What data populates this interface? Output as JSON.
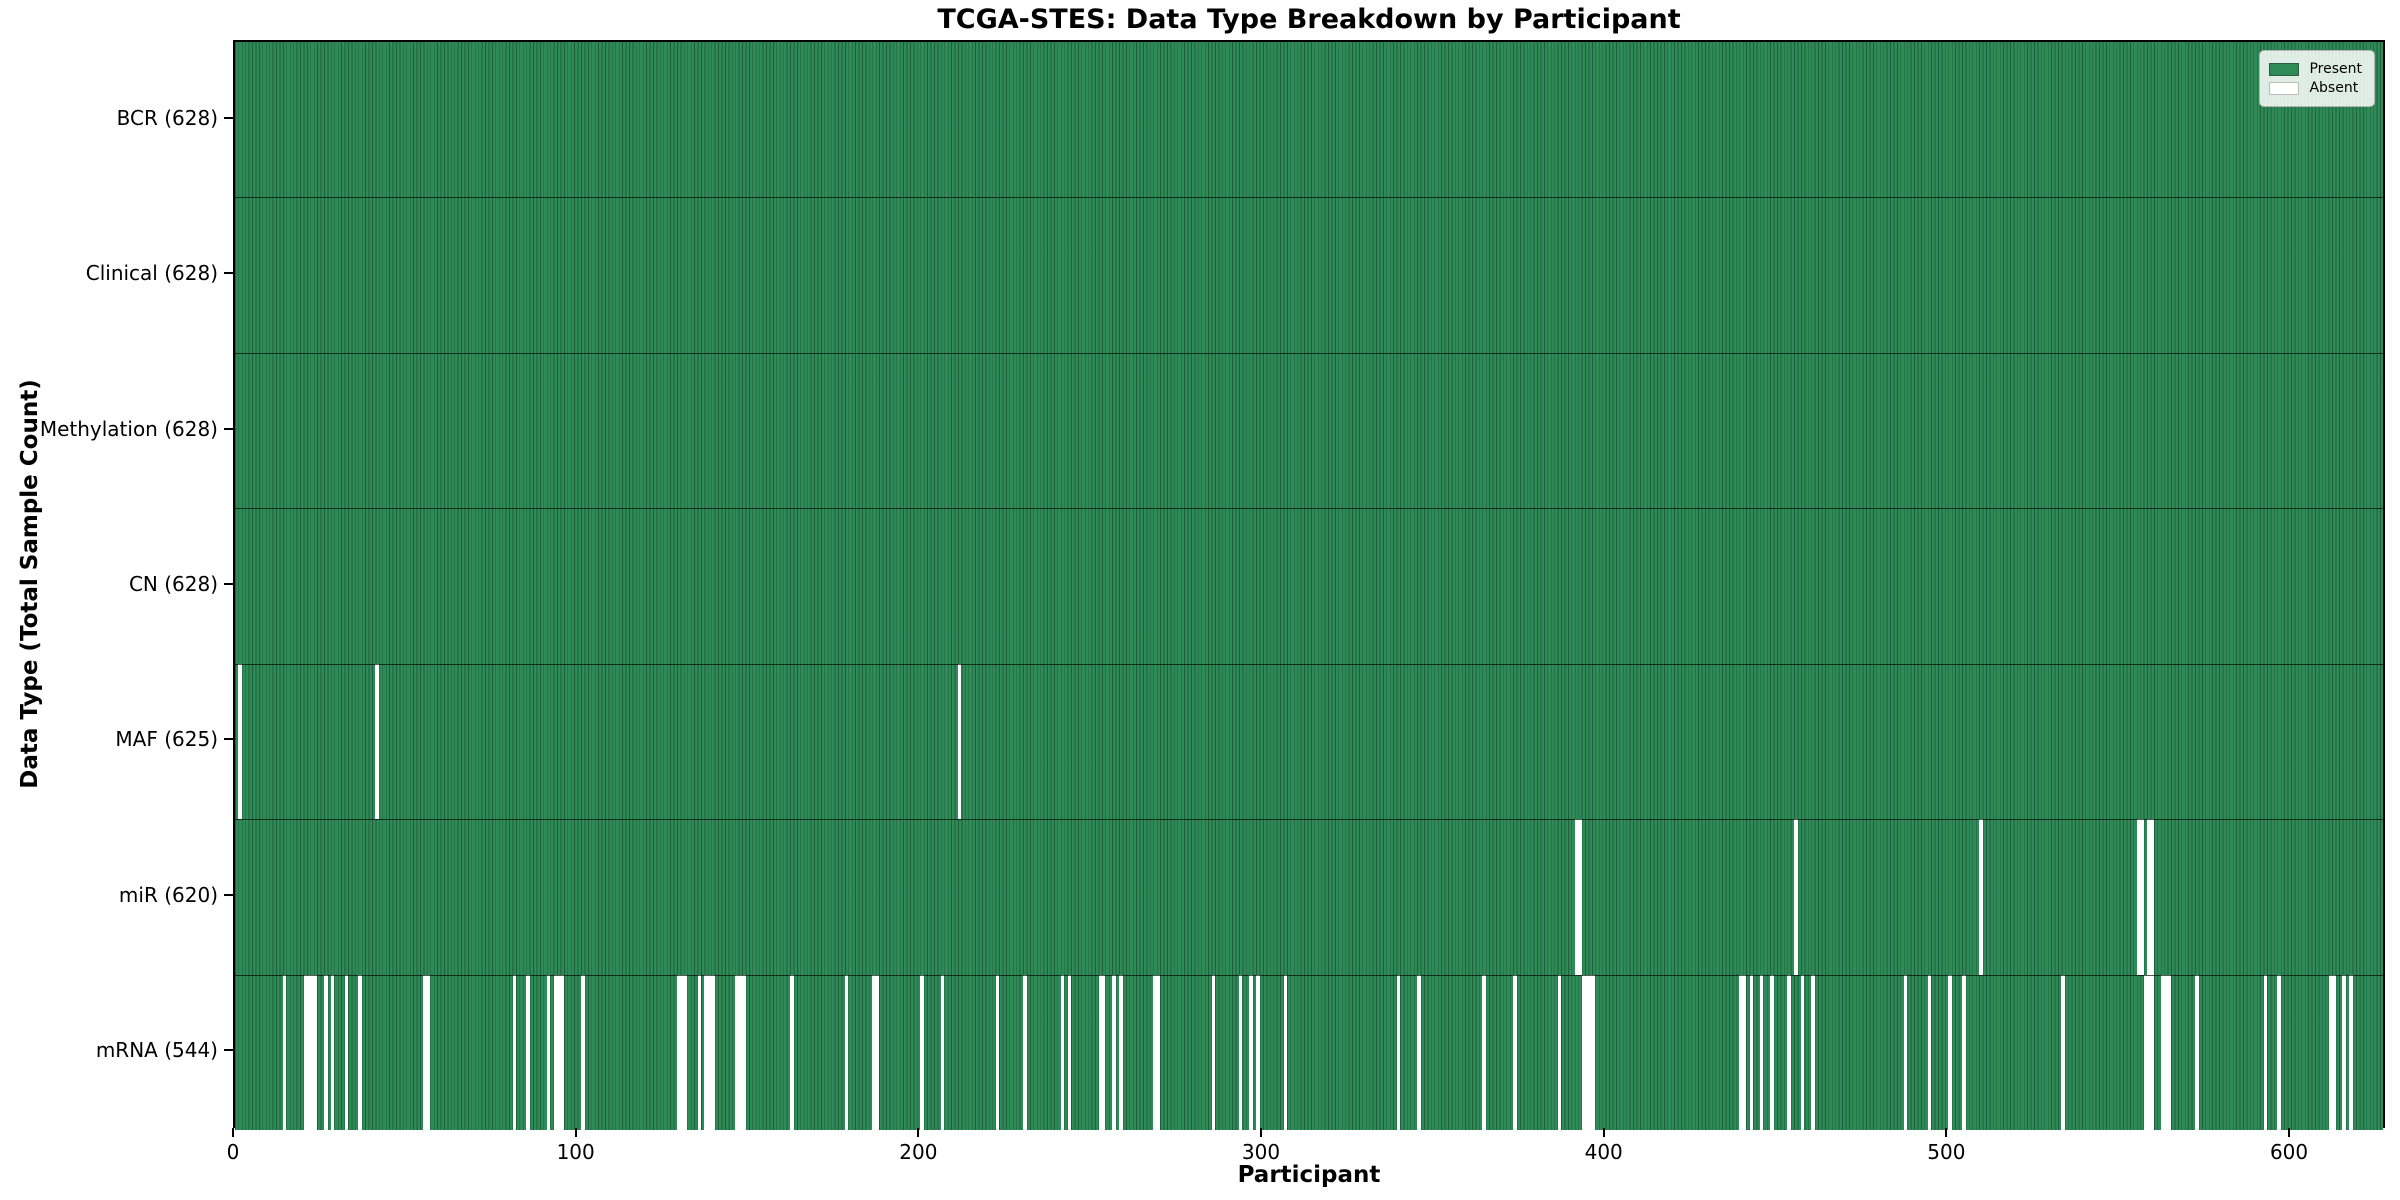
{
  "title": "TCGA-STES: Data Type Breakdown by Participant",
  "x_axis": {
    "label": "Participant",
    "ticks": [
      0,
      100,
      200,
      300,
      400,
      500,
      600
    ]
  },
  "y_axis": {
    "label": "Data Type (Total Sample Count)"
  },
  "legend": {
    "items": [
      {
        "label": "Present",
        "color": "#2e8b57"
      },
      {
        "label": "Absent",
        "color": "#ffffff"
      }
    ]
  },
  "chart_data": {
    "type": "heatmap",
    "title": "TCGA-STES: Data Type Breakdown by Participant",
    "xlabel": "Participant",
    "ylabel": "Data Type (Total Sample Count)",
    "x_range": [
      0,
      628
    ],
    "total_participants": 628,
    "legend_position": "upper right",
    "colors": {
      "present": "#2e8b57",
      "absent": "#ffffff",
      "bar_edge": "rgba(0,0,0,0.32)",
      "row_boundary": "rgba(0,0,0,0.65)"
    },
    "rows": [
      {
        "label": "BCR",
        "count": 628,
        "display": "BCR (628)",
        "absent_participants": []
      },
      {
        "label": "Clinical",
        "count": 628,
        "display": "Clinical (628)",
        "absent_participants": []
      },
      {
        "label": "Methylation",
        "count": 628,
        "display": "Methylation (628)",
        "absent_participants": []
      },
      {
        "label": "CN",
        "count": 628,
        "display": "CN (628)",
        "absent_participants": []
      },
      {
        "label": "MAF",
        "count": 625,
        "display": "MAF (625)",
        "absent_participants": [
          1,
          41,
          211
        ]
      },
      {
        "label": "miR",
        "count": 620,
        "display": "miR (620)",
        "absent_participants": [
          391,
          392,
          455,
          509,
          555,
          556,
          558,
          559
        ]
      },
      {
        "label": "mRNA",
        "count": 544,
        "display": "mRNA (544)",
        "absent_participants": [
          14,
          20,
          21,
          22,
          23,
          26,
          28,
          32,
          36,
          55,
          56,
          81,
          85,
          91,
          93,
          94,
          95,
          101,
          129,
          130,
          131,
          135,
          137,
          138,
          139,
          146,
          147,
          148,
          162,
          178,
          186,
          187,
          200,
          206,
          222,
          230,
          241,
          243,
          252,
          253,
          256,
          258,
          268,
          269,
          285,
          293,
          296,
          298,
          306,
          339,
          345,
          364,
          373,
          386,
          393,
          394,
          395,
          396,
          439,
          440,
          442,
          445,
          448,
          453,
          457,
          460,
          487,
          494,
          500,
          504,
          533,
          557,
          558,
          559,
          562,
          563,
          564,
          572,
          592,
          596,
          611,
          612,
          615,
          617
        ]
      }
    ]
  }
}
